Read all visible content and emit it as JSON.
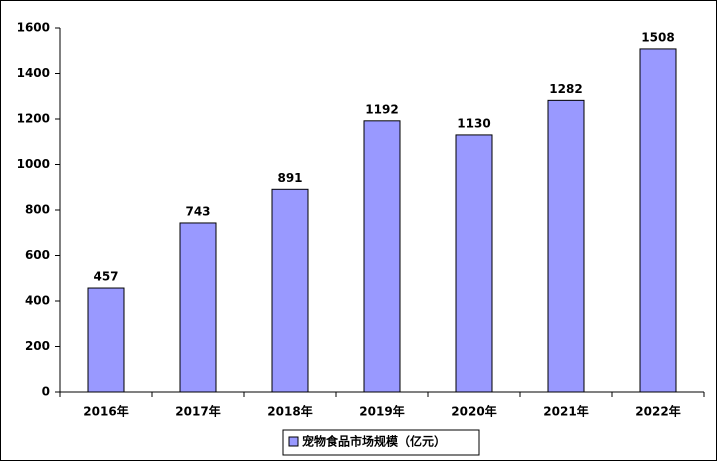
{
  "chart_data": {
    "type": "bar",
    "categories": [
      "2016年",
      "2017年",
      "2018年",
      "2019年",
      "2020年",
      "2021年",
      "2022年"
    ],
    "series": [
      {
        "name": "宠物食品市场规模（亿元）",
        "color": "#9999ff",
        "values": [
          457,
          743,
          891,
          1192,
          1130,
          1282,
          1508
        ]
      }
    ],
    "ylim": [
      0,
      1600
    ],
    "yticks": [
      0,
      200,
      400,
      600,
      800,
      1000,
      1200,
      1400,
      1600
    ],
    "grid": false,
    "legend": "bottom"
  }
}
